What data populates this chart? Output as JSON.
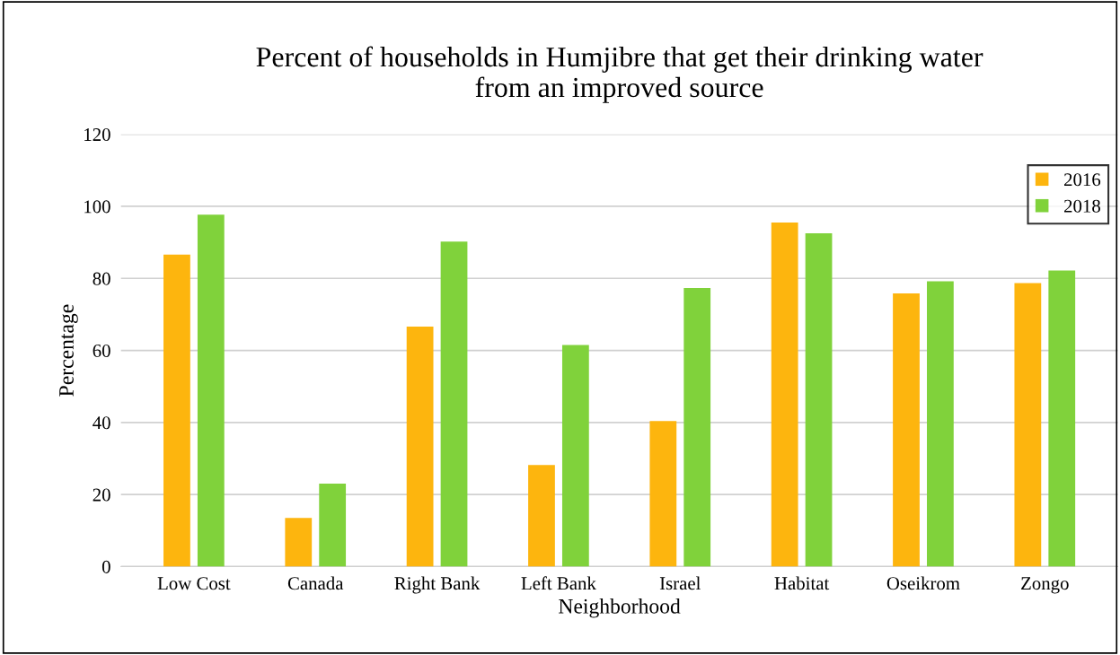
{
  "chart_data": {
    "type": "bar",
    "title": "Percent of households in Humjibre that get their drinking water\nfrom an improved source",
    "xlabel": "Neighborhood",
    "ylabel": "Percentage",
    "categories": [
      "Low Cost",
      "Canada",
      "Right Bank",
      "Left Bank",
      "Israel",
      "Habitat",
      "Oseikrom",
      "Zongo"
    ],
    "series": [
      {
        "name": "2016",
        "color": "#fdb50e",
        "values": [
          86.6,
          13.5,
          66.6,
          28.2,
          40.4,
          95.5,
          75.8,
          78.7
        ]
      },
      {
        "name": "2018",
        "color": "#80d23b",
        "values": [
          97.7,
          23.0,
          90.2,
          61.5,
          77.3,
          92.5,
          79.2,
          82.2
        ]
      }
    ],
    "ylim": [
      0,
      120
    ],
    "yticks": [
      0,
      20,
      40,
      60,
      80,
      100,
      120
    ],
    "grid": "y",
    "legend": "top right"
  }
}
